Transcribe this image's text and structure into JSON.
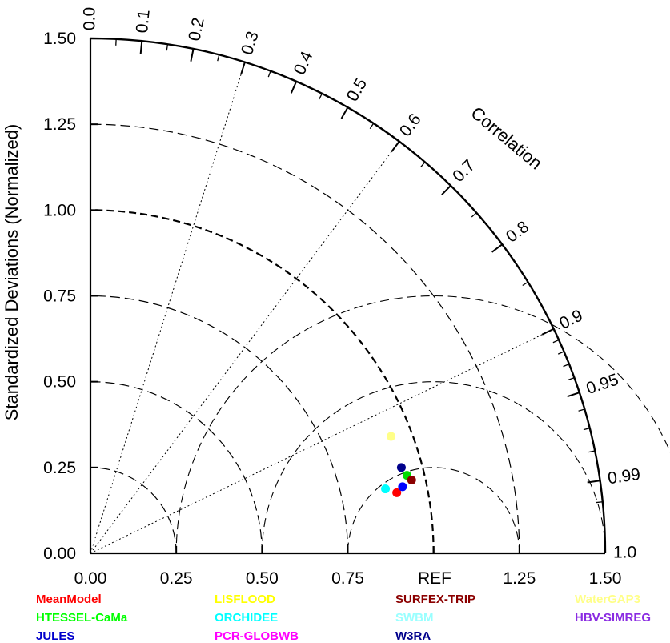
{
  "chart_data": {
    "type": "scatter",
    "subtype": "taylor-diagram",
    "ylabel": "Standardized Deviations (Normalized)",
    "arc_label": "Correlation",
    "ref_label": "REF",
    "std_max": 1.5,
    "std_ticks": [
      "0.00",
      "0.25",
      "0.50",
      "0.75",
      "1.00",
      "1.25",
      "1.50"
    ],
    "corr_ticks": [
      {
        "value": 0.0,
        "label": "0.0"
      },
      {
        "value": 0.1,
        "label": "0.1"
      },
      {
        "value": 0.2,
        "label": "0.2"
      },
      {
        "value": 0.3,
        "label": "0.3"
      },
      {
        "value": 0.4,
        "label": "0.4"
      },
      {
        "value": 0.5,
        "label": "0.5"
      },
      {
        "value": 0.6,
        "label": "0.6"
      },
      {
        "value": 0.7,
        "label": "0.7"
      },
      {
        "value": 0.8,
        "label": "0.8"
      },
      {
        "value": 0.9,
        "label": "0.9"
      },
      {
        "value": 0.95,
        "label": "0.95"
      },
      {
        "value": 0.99,
        "label": "0.99"
      },
      {
        "value": 1.0,
        "label": "1.0"
      }
    ],
    "corr_radial_lines": [
      0.3,
      0.6,
      0.9
    ],
    "series": [
      {
        "name": "MeanModel",
        "color": "#ff0000",
        "std": 0.91,
        "corr": 0.981
      },
      {
        "name": "HTESSEL-CaMa",
        "color": "#00dd00",
        "std": 0.95,
        "corr": 0.971
      },
      {
        "name": "JULES",
        "color": "#0000ff",
        "std": 0.93,
        "corr": 0.978
      },
      {
        "name": "LISFLOOD",
        "color": "#ffff00",
        "std": 0.0,
        "corr": 0.0,
        "note_hidden": true
      },
      {
        "name": "ORCHIDEE",
        "color": "#00ffff",
        "std": 0.88,
        "corr": 0.977
      },
      {
        "name": "PCR-GLOBWB",
        "color": "#ff00ff",
        "std": 0.0,
        "corr": 0.0,
        "note_hidden": true
      },
      {
        "name": "SURFEX-TRIP",
        "color": "#8b0000",
        "std": 0.96,
        "corr": 0.975
      },
      {
        "name": "SWBM",
        "color": "#99ffff",
        "std": 0.0,
        "corr": 0.0,
        "note_hidden": true
      },
      {
        "name": "W3RA",
        "color": "#00008b",
        "std": 0.94,
        "corr": 0.964
      },
      {
        "name": "WaterGAP3",
        "color": "#ffff88",
        "std": 0.94,
        "corr": 0.932
      },
      {
        "name": "HBV-SIMREG",
        "color": "#8a2be2",
        "std": 0.0,
        "corr": 0.0,
        "note_hidden": true
      }
    ]
  },
  "legend": [
    {
      "label": "MeanModel",
      "color": "#ff0000"
    },
    {
      "label": "HTESSEL-CaMa",
      "color": "#00ff00"
    },
    {
      "label": "JULES",
      "color": "#0000cc"
    },
    {
      "label": "LISFLOOD",
      "color": "#ffff00"
    },
    {
      "label": "ORCHIDEE",
      "color": "#00ffff"
    },
    {
      "label": "PCR-GLOBWB",
      "color": "#ff00ff"
    },
    {
      "label": "SURFEX-TRIP",
      "color": "#8b0000"
    },
    {
      "label": "SWBM",
      "color": "#99ffff"
    },
    {
      "label": "W3RA",
      "color": "#00008b"
    },
    {
      "label": "WaterGAP3",
      "color": "#ffff88"
    },
    {
      "label": "HBV-SIMREG",
      "color": "#8a2be2"
    }
  ]
}
